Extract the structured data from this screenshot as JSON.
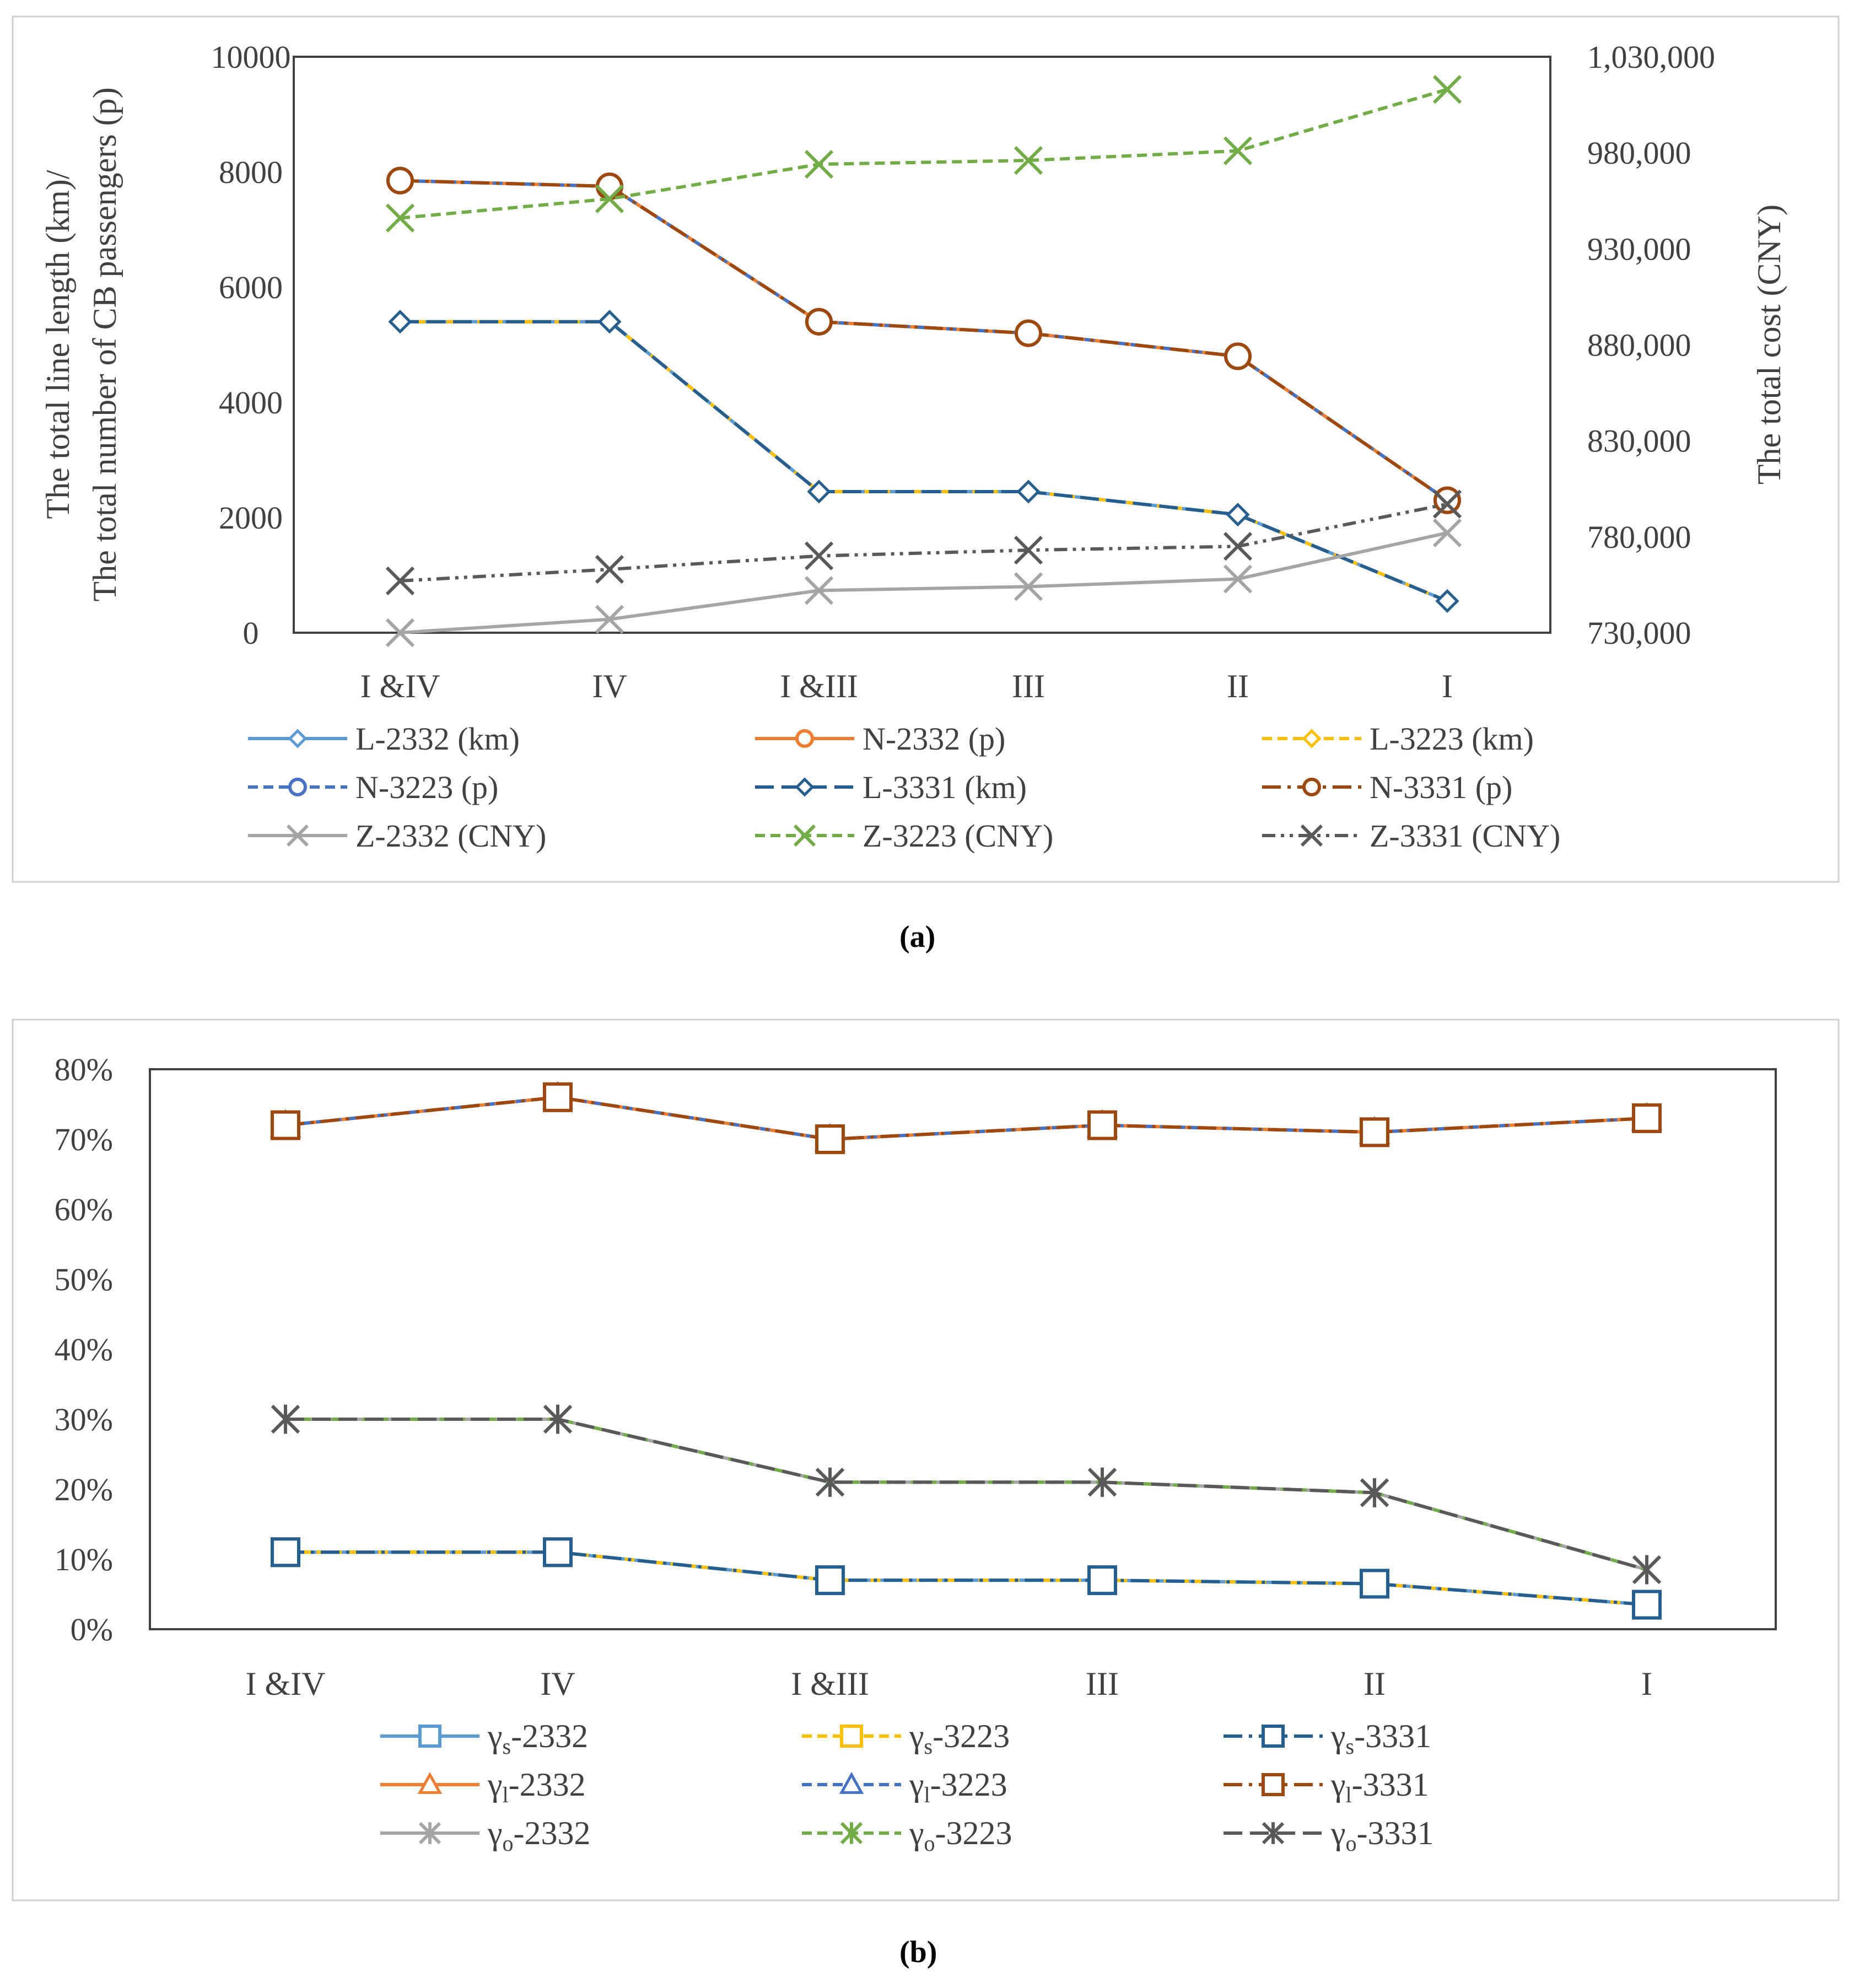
{
  "chart_data": [
    {
      "type": "line",
      "panel_label": "(a)",
      "categories": [
        "I &IV",
        "IV",
        "I &III",
        "III",
        "II",
        "I"
      ],
      "ylabel_left": [
        "The total line length (km)/",
        "The total number of CB passengers (p)"
      ],
      "ylabel_right": "The total cost (CNY)",
      "ylim_left": [
        0,
        10000
      ],
      "ylim_right": [
        730000,
        1030000
      ],
      "left_ticks": [
        "0",
        "2000",
        "4000",
        "6000",
        "8000",
        "10000"
      ],
      "right_ticks": [
        "730,000",
        "780,000",
        "830,000",
        "880,000",
        "930,000",
        "980,000",
        "1,030,000"
      ],
      "grid": false,
      "legend_position": "bottom",
      "series": [
        {
          "name": "L-2332 (km)",
          "axis": "left",
          "color": "#5b9bd5",
          "dash": "solid",
          "marker": "diamond",
          "values": [
            5400,
            5400,
            2450,
            2450,
            2050,
            550
          ]
        },
        {
          "name": "N-2332 (p)",
          "axis": "left",
          "color": "#ed7d31",
          "dash": "solid",
          "marker": "circle",
          "values": [
            7850,
            7750,
            5400,
            5200,
            4800,
            2300
          ]
        },
        {
          "name": "L-3223 (km)",
          "axis": "left",
          "color": "#ffc000",
          "dash": "dashed",
          "marker": "diamond",
          "values": [
            5400,
            5400,
            2450,
            2450,
            2050,
            550
          ]
        },
        {
          "name": "N-3223 (p)",
          "axis": "left",
          "color": "#4472c4",
          "dash": "dashed",
          "marker": "circle",
          "values": [
            7850,
            7750,
            5400,
            5200,
            4800,
            2300
          ]
        },
        {
          "name": "L-3331 (km)",
          "axis": "left",
          "color": "#255e91",
          "dash": "longdash",
          "marker": "diamond",
          "values": [
            5400,
            5400,
            2450,
            2450,
            2050,
            550
          ]
        },
        {
          "name": "N-3331 (p)",
          "axis": "left",
          "color": "#9e480e",
          "dash": "longdashdot",
          "marker": "circle",
          "values": [
            7850,
            7750,
            5400,
            5200,
            4800,
            2300
          ]
        },
        {
          "name": "Z-2332 (CNY)",
          "axis": "right",
          "color": "#a5a5a5",
          "dash": "solid",
          "marker": "x",
          "values": [
            730000,
            737000,
            752000,
            754000,
            758000,
            782000
          ]
        },
        {
          "name": "Z-3223 (CNY)",
          "axis": "right",
          "color": "#70ad47",
          "dash": "dashed",
          "marker": "x",
          "values": [
            946000,
            956000,
            974000,
            976000,
            981000,
            1013000
          ]
        },
        {
          "name": "Z-3331 (CNY)",
          "axis": "right",
          "color": "#595959",
          "dash": "dashdotdot",
          "marker": "x",
          "values": [
            757000,
            763000,
            770000,
            773000,
            775000,
            797000
          ]
        }
      ]
    },
    {
      "type": "line",
      "panel_label": "(b)",
      "categories": [
        "I &IV",
        "IV",
        "I &III",
        "III",
        "II",
        "I"
      ],
      "ylim": [
        0,
        80
      ],
      "y_ticks": [
        "0%",
        "10%",
        "20%",
        "30%",
        "40%",
        "50%",
        "60%",
        "70%",
        "80%"
      ],
      "grid": false,
      "legend_position": "bottom",
      "series": [
        {
          "name_base": "γ",
          "name_sub": "s",
          "name_tail": "-2332",
          "color": "#5b9bd5",
          "dash": "solid",
          "marker": "square",
          "values": [
            11,
            11,
            7,
            7,
            6.5,
            3.5
          ]
        },
        {
          "name_base": "γ",
          "name_sub": "s",
          "name_tail": "-3223",
          "color": "#ffc000",
          "dash": "dashed",
          "marker": "square",
          "values": [
            11,
            11,
            7,
            7,
            6.5,
            3.5
          ]
        },
        {
          "name_base": "γ",
          "name_sub": "s",
          "name_tail": "-3331",
          "color": "#255e91",
          "dash": "longdashdot",
          "marker": "square",
          "values": [
            11,
            11,
            7,
            7,
            6.5,
            3.5
          ]
        },
        {
          "name_base": "γ",
          "name_sub": "l",
          "name_tail": "-2332",
          "color": "#ed7d31",
          "dash": "solid",
          "marker": "triangle",
          "values": [
            72,
            76,
            70,
            72,
            71,
            73
          ]
        },
        {
          "name_base": "γ",
          "name_sub": "l",
          "name_tail": "-3223",
          "color": "#4472c4",
          "dash": "dashed",
          "marker": "triangle",
          "values": [
            72,
            76,
            70,
            72,
            71,
            73
          ]
        },
        {
          "name_base": "γ",
          "name_sub": "l",
          "name_tail": "-3331",
          "color": "#9e480e",
          "dash": "longdashdot",
          "marker": "square",
          "values": [
            72,
            76,
            70,
            72,
            71,
            73
          ]
        },
        {
          "name_base": "γ",
          "name_sub": "o",
          "name_tail": "-2332",
          "color": "#a5a5a5",
          "dash": "solid",
          "marker": "asterisk",
          "values": [
            30,
            30,
            21,
            21,
            19.5,
            8.5
          ]
        },
        {
          "name_base": "γ",
          "name_sub": "o",
          "name_tail": "-3223",
          "color": "#70ad47",
          "dash": "dashed",
          "marker": "asterisk",
          "values": [
            30,
            30,
            21,
            21,
            19.5,
            8.5
          ]
        },
        {
          "name_base": "γ",
          "name_sub": "o",
          "name_tail": "-3331",
          "color": "#595959",
          "dash": "longdash",
          "marker": "asterisk",
          "values": [
            30,
            30,
            21,
            21,
            19.5,
            8.5
          ]
        }
      ]
    }
  ]
}
